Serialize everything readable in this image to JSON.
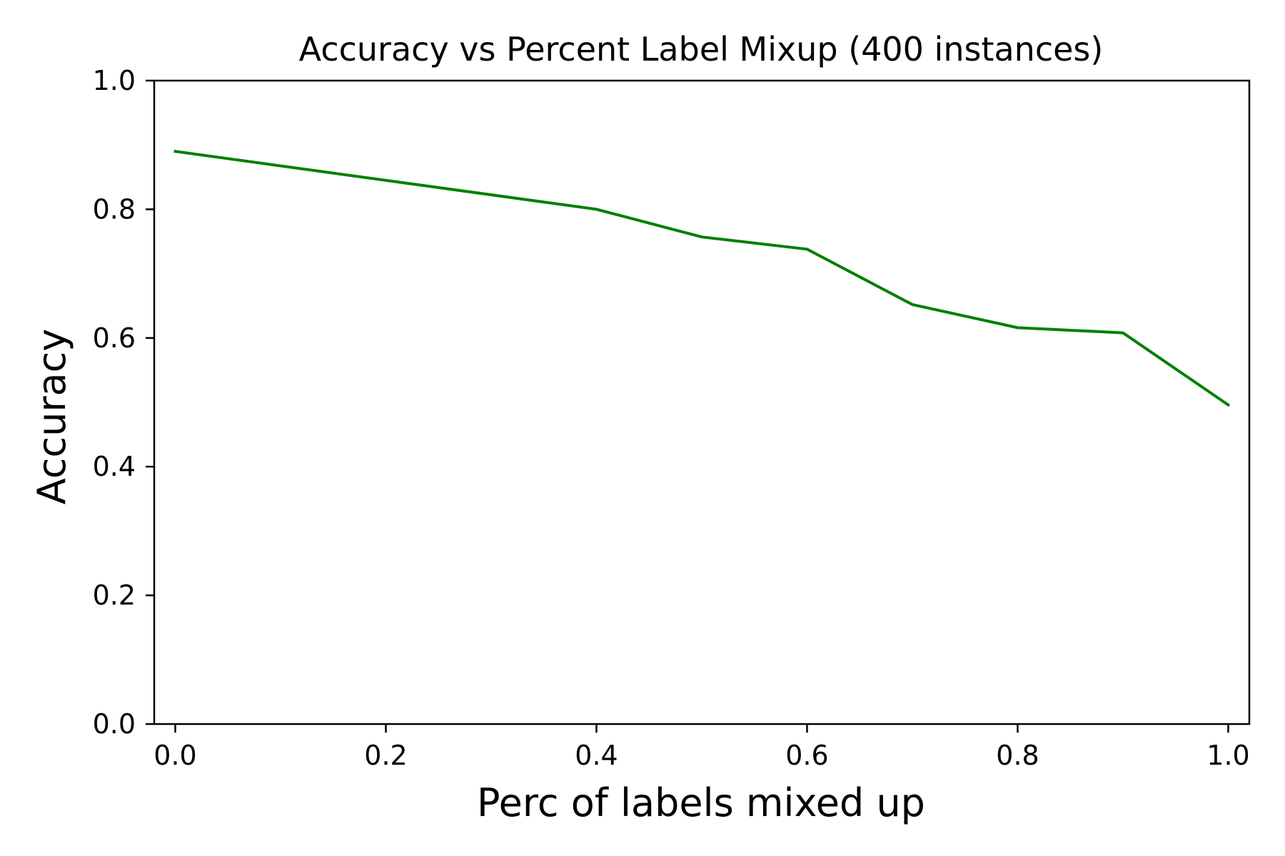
{
  "chart_data": {
    "type": "line",
    "title": "Accuracy vs Percent Label Mixup (400 instances)",
    "xlabel": "Perc of labels mixed up",
    "ylabel": "Accuracy",
    "xlim": [
      -0.02,
      1.02
    ],
    "ylim": [
      0.0,
      1.0
    ],
    "xticks": [
      "0.0",
      "0.2",
      "0.4",
      "0.6",
      "0.8",
      "1.0"
    ],
    "yticks": [
      "0.0",
      "0.2",
      "0.4",
      "0.6",
      "0.8",
      "1.0"
    ],
    "grid": false,
    "series": [
      {
        "color": "#008000",
        "x": [
          0.0,
          0.4,
          0.5,
          0.6,
          0.7,
          0.8,
          0.9,
          1.0
        ],
        "y": [
          0.89,
          0.8,
          0.757,
          0.738,
          0.652,
          0.616,
          0.608,
          0.496
        ]
      }
    ]
  }
}
